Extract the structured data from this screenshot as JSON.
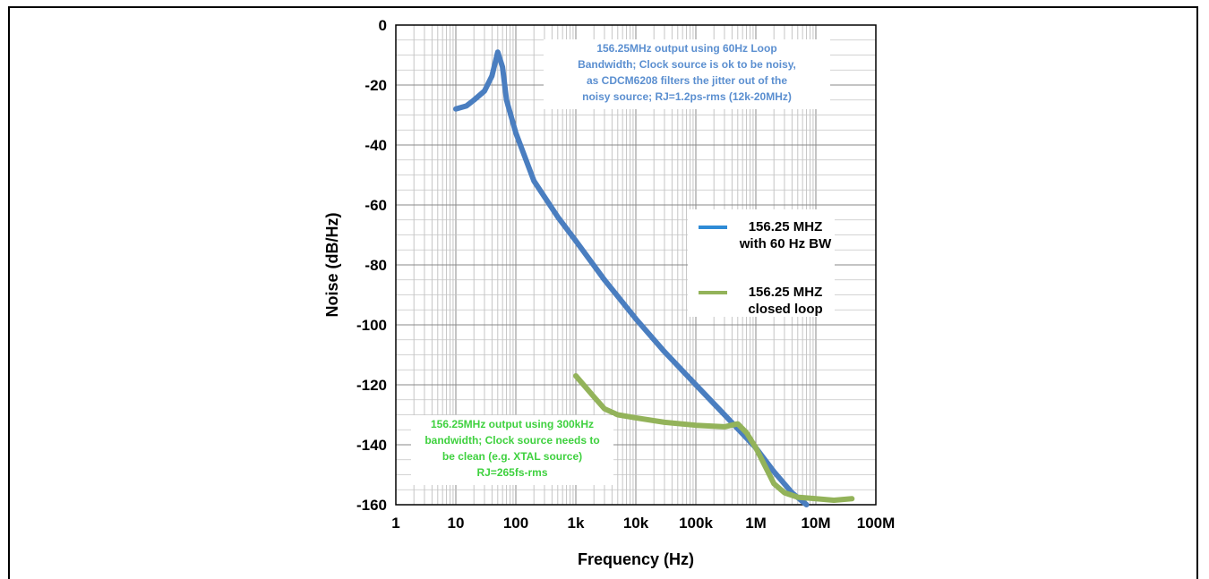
{
  "chart_data": {
    "type": "line",
    "title": "",
    "xlabel": "Frequency (Hz)",
    "ylabel": "Noise (dB/Hz)",
    "x_scale": "log",
    "xlim": [
      1,
      100000000
    ],
    "ylim": [
      -160,
      0
    ],
    "x_ticks": [
      {
        "value": 1,
        "label": "1"
      },
      {
        "value": 10,
        "label": "10"
      },
      {
        "value": 100,
        "label": "100"
      },
      {
        "value": 1000,
        "label": "1k"
      },
      {
        "value": 10000,
        "label": "10k"
      },
      {
        "value": 100000,
        "label": "100k"
      },
      {
        "value": 1000000,
        "label": "1M"
      },
      {
        "value": 10000000,
        "label": "10M"
      },
      {
        "value": 100000000,
        "label": "100M"
      }
    ],
    "y_ticks": [
      {
        "value": 0,
        "label": "0"
      },
      {
        "value": -20,
        "label": "-20"
      },
      {
        "value": -40,
        "label": "-40"
      },
      {
        "value": -60,
        "label": "-60"
      },
      {
        "value": -80,
        "label": "-80"
      },
      {
        "value": -100,
        "label": "-100"
      },
      {
        "value": -120,
        "label": "-120"
      },
      {
        "value": -140,
        "label": "-140"
      },
      {
        "value": -160,
        "label": "-160"
      }
    ],
    "grid": true,
    "legend_position": "right",
    "series": [
      {
        "name": "156.25 MHZ with 60 Hz BW",
        "legend_lines": [
          "156.25 MHZ",
          "with 60 Hz BW"
        ],
        "color": "#4a7ec0",
        "legend_color": "#2e8bd6",
        "points": [
          [
            10,
            -28
          ],
          [
            15,
            -27
          ],
          [
            20,
            -25
          ],
          [
            30,
            -22
          ],
          [
            40,
            -17
          ],
          [
            50,
            -9
          ],
          [
            60,
            -14
          ],
          [
            70,
            -25
          ],
          [
            100,
            -36
          ],
          [
            200,
            -52
          ],
          [
            500,
            -64
          ],
          [
            1000,
            -72
          ],
          [
            3000,
            -85
          ],
          [
            10000,
            -98
          ],
          [
            30000,
            -109
          ],
          [
            100000,
            -120
          ],
          [
            300000,
            -130
          ],
          [
            1000000,
            -141
          ],
          [
            2000000,
            -149
          ],
          [
            4000000,
            -156
          ],
          [
            7000000,
            -160
          ]
        ]
      },
      {
        "name": "156.25 MHZ closed loop",
        "legend_lines": [
          "156.25 MHZ",
          "closed loop"
        ],
        "color": "#93b35a",
        "legend_color": "#93b35a",
        "points": [
          [
            1000,
            -117
          ],
          [
            2000,
            -124
          ],
          [
            3000,
            -128
          ],
          [
            5000,
            -130
          ],
          [
            10000,
            -131
          ],
          [
            30000,
            -132.5
          ],
          [
            100000,
            -133.5
          ],
          [
            300000,
            -134
          ],
          [
            500000,
            -133
          ],
          [
            700000,
            -136
          ],
          [
            1000000,
            -141
          ],
          [
            1500000,
            -148
          ],
          [
            2000000,
            -153
          ],
          [
            3000000,
            -156
          ],
          [
            5000000,
            -157.5
          ],
          [
            10000000,
            -158
          ],
          [
            20000000,
            -158.5
          ],
          [
            40000000,
            -158
          ]
        ]
      }
    ],
    "annotations": [
      {
        "lines": [
          "156.25MHz output using 60Hz Loop",
          "Bandwidth; Clock source is ok to be noisy,",
          "as CDCM6208 filters the jitter out of the",
          "noisy source; RJ=1.2ps-rms (12k-20MHz)"
        ],
        "color": "#5b8fd0"
      },
      {
        "lines": [
          "156.25MHz output using 300kHz",
          "bandwidth; Clock source needs to",
          "be clean (e.g. XTAL source)",
          "RJ=265fs-rms"
        ],
        "color": "#3fd13f"
      }
    ]
  }
}
